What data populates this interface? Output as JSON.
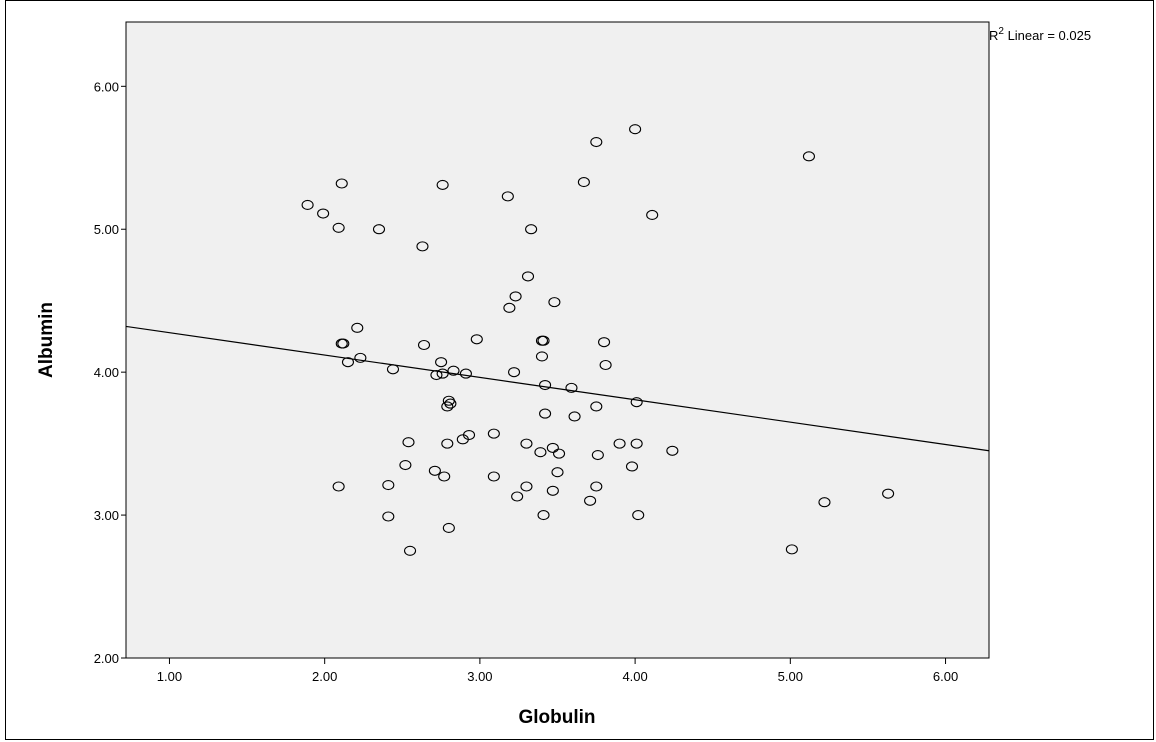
{
  "chart_data": {
    "type": "scatter",
    "xlabel": "Globulin",
    "ylabel": "Albumin",
    "xlim": [
      0.72,
      6.28
    ],
    "ylim": [
      2.0,
      6.45
    ],
    "x_ticks": [
      "1.00",
      "2.00",
      "3.00",
      "4.00",
      "5.00",
      "6.00"
    ],
    "y_ticks": [
      "2.00",
      "3.00",
      "4.00",
      "5.00",
      "6.00"
    ],
    "annotation": {
      "prefix": "R",
      "sup": "2",
      "suffix": " Linear = 0.025"
    },
    "fit_line": {
      "x": [
        0.72,
        6.28
      ],
      "y": [
        4.32,
        3.45
      ]
    },
    "colors": {
      "plot_bg": "#f0f0f0",
      "marker_stroke": "#000000",
      "line": "#000000"
    },
    "points": [
      [
        1.89,
        5.17
      ],
      [
        1.99,
        5.11
      ],
      [
        2.09,
        5.01
      ],
      [
        2.11,
        5.32
      ],
      [
        2.35,
        5.0
      ],
      [
        2.63,
        4.88
      ],
      [
        2.76,
        5.31
      ],
      [
        3.18,
        5.23
      ],
      [
        3.33,
        5.0
      ],
      [
        3.67,
        5.33
      ],
      [
        3.75,
        5.61
      ],
      [
        4.0,
        5.7
      ],
      [
        4.11,
        5.1
      ],
      [
        5.12,
        5.51
      ],
      [
        3.31,
        4.67
      ],
      [
        3.23,
        4.53
      ],
      [
        3.19,
        4.45
      ],
      [
        3.48,
        4.49
      ],
      [
        2.11,
        4.2
      ],
      [
        2.12,
        4.2
      ],
      [
        2.21,
        4.31
      ],
      [
        2.23,
        4.1
      ],
      [
        2.15,
        4.07
      ],
      [
        2.44,
        4.02
      ],
      [
        2.64,
        4.19
      ],
      [
        2.75,
        4.07
      ],
      [
        2.72,
        3.98
      ],
      [
        2.76,
        3.99
      ],
      [
        2.83,
        4.01
      ],
      [
        2.91,
        3.99
      ],
      [
        2.98,
        4.23
      ],
      [
        3.4,
        4.22
      ],
      [
        3.41,
        4.22
      ],
      [
        3.4,
        4.11
      ],
      [
        3.22,
        4.0
      ],
      [
        3.8,
        4.21
      ],
      [
        3.81,
        4.05
      ],
      [
        3.42,
        3.91
      ],
      [
        3.59,
        3.89
      ],
      [
        2.8,
        3.8
      ],
      [
        2.81,
        3.78
      ],
      [
        2.79,
        3.76
      ],
      [
        4.01,
        3.79
      ],
      [
        3.75,
        3.76
      ],
      [
        3.42,
        3.71
      ],
      [
        3.61,
        3.69
      ],
      [
        2.54,
        3.51
      ],
      [
        2.79,
        3.5
      ],
      [
        2.89,
        3.53
      ],
      [
        2.93,
        3.56
      ],
      [
        3.09,
        3.57
      ],
      [
        3.3,
        3.5
      ],
      [
        3.39,
        3.44
      ],
      [
        3.47,
        3.47
      ],
      [
        3.51,
        3.43
      ],
      [
        3.9,
        3.5
      ],
      [
        4.01,
        3.5
      ],
      [
        4.24,
        3.45
      ],
      [
        3.76,
        3.42
      ],
      [
        3.98,
        3.34
      ],
      [
        2.52,
        3.35
      ],
      [
        2.71,
        3.31
      ],
      [
        2.77,
        3.27
      ],
      [
        3.09,
        3.27
      ],
      [
        3.5,
        3.3
      ],
      [
        2.09,
        3.2
      ],
      [
        2.41,
        3.21
      ],
      [
        3.3,
        3.2
      ],
      [
        3.75,
        3.2
      ],
      [
        3.47,
        3.17
      ],
      [
        3.24,
        3.13
      ],
      [
        3.71,
        3.1
      ],
      [
        5.22,
        3.09
      ],
      [
        5.63,
        3.15
      ],
      [
        2.41,
        2.99
      ],
      [
        3.41,
        3.0
      ],
      [
        4.02,
        3.0
      ],
      [
        2.8,
        2.91
      ],
      [
        2.55,
        2.75
      ],
      [
        5.01,
        2.76
      ]
    ]
  }
}
